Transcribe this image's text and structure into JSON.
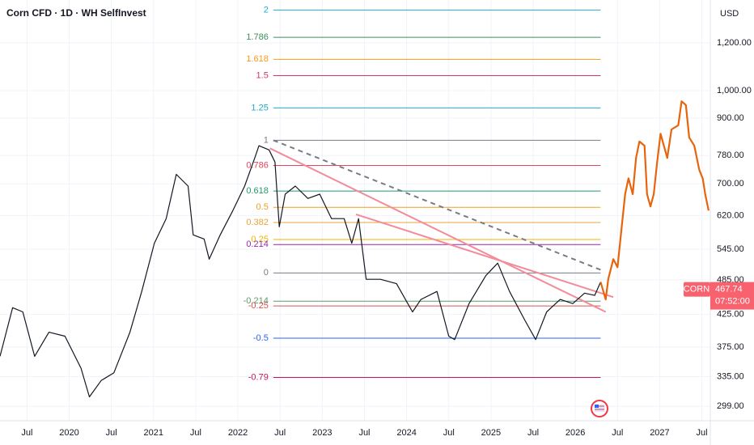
{
  "chart_data": {
    "type": "line",
    "title": "Corn CFD · 1D · WH SelfInvest",
    "currency": "USD",
    "symbol": "CORN",
    "last_price": 467.74,
    "countdown": "07:52:00",
    "log_scale": true,
    "grid": true,
    "xlim": [
      2019.18,
      2027.6
    ],
    "ylim": [
      283,
      1414
    ],
    "xticks": [
      {
        "value": 2019.5,
        "label": "Jul"
      },
      {
        "value": 2020,
        "label": "2020"
      },
      {
        "value": 2020.5,
        "label": "Jul"
      },
      {
        "value": 2021,
        "label": "2021"
      },
      {
        "value": 2021.5,
        "label": "Jul"
      },
      {
        "value": 2022,
        "label": "2022"
      },
      {
        "value": 2022.5,
        "label": "Jul"
      },
      {
        "value": 2023,
        "label": "2023"
      },
      {
        "value": 2023.5,
        "label": "Jul"
      },
      {
        "value": 2024,
        "label": "2024"
      },
      {
        "value": 2024.5,
        "label": "Jul"
      },
      {
        "value": 2025,
        "label": "2025"
      },
      {
        "value": 2025.5,
        "label": "Jul"
      },
      {
        "value": 2026,
        "label": "2026"
      },
      {
        "value": 2026.5,
        "label": "Jul"
      },
      {
        "value": 2027,
        "label": "2027"
      },
      {
        "value": 2027.5,
        "label": "Jul"
      }
    ],
    "yticks": [
      {
        "value": 1200,
        "label": "1,200.00"
      },
      {
        "value": 1000,
        "label": "1,000.00"
      },
      {
        "value": 900,
        "label": "900.00"
      },
      {
        "value": 780,
        "label": "780.00"
      },
      {
        "value": 700,
        "label": "700.00"
      },
      {
        "value": 620,
        "label": "620.00"
      },
      {
        "value": 545,
        "label": "545.00"
      },
      {
        "value": 485,
        "label": "485.00"
      },
      {
        "value": 425,
        "label": "425.00"
      },
      {
        "value": 375,
        "label": "375.00"
      },
      {
        "value": 335,
        "label": "335.00"
      },
      {
        "value": 299,
        "label": "299.00"
      }
    ],
    "series": [
      {
        "color": "#131722",
        "x": [
          2019.18,
          2019.33,
          2019.45,
          2019.59,
          2019.76,
          2019.95,
          2020.14,
          2020.24,
          2020.38,
          2020.53,
          2020.72,
          2020.86,
          2021.01,
          2021.15,
          2021.27,
          2021.41,
          2021.47,
          2021.6,
          2021.66,
          2021.79,
          2021.94,
          2022.08,
          2022.2,
          2022.25,
          2022.37,
          2022.44,
          2022.49,
          2022.56,
          2022.68,
          2022.83,
          2022.97,
          2023.11,
          2023.26,
          2023.35,
          2023.43,
          2023.52,
          2023.69,
          2023.88,
          2024.07,
          2024.17,
          2024.36,
          2024.5,
          2024.57,
          2024.74,
          2024.94,
          2025.08,
          2025.22,
          2025.4,
          2025.53,
          2025.66,
          2025.82,
          2025.97,
          2026.11,
          2026.23,
          2026.3
        ],
        "values": [
          362,
          436,
          429,
          362,
          397,
          391,
          346,
          310,
          330,
          340,
          397,
          464,
          558,
          613,
          726,
          694,
          576,
          567,
          525,
          576,
          632,
          694,
          773,
          810,
          797,
          761,
          594,
          673,
          694,
          662,
          673,
          613,
          613,
          558,
          613,
          486,
          486,
          478,
          429,
          450,
          464,
          391,
          386,
          443,
          493,
          517,
          464,
          416,
          386,
          429,
          450,
          443,
          461,
          457,
          481
        ]
      },
      {
        "color": "#e8640c",
        "x": [
          2026.3,
          2026.36,
          2026.39,
          2026.45,
          2026.5,
          2026.55,
          2026.59,
          2026.63,
          2026.68,
          2026.72,
          2026.76,
          2026.82,
          2026.85,
          2026.89,
          2026.93,
          2026.97,
          2027.01,
          2027.05,
          2027.09,
          2027.14,
          2027.22,
          2027.26,
          2027.31,
          2027.35,
          2027.41,
          2027.47,
          2027.51,
          2027.54,
          2027.58
        ],
        "values": [
          481,
          450,
          486,
          525,
          509,
          594,
          673,
          715,
          673,
          773,
          823,
          810,
          673,
          642,
          673,
          761,
          848,
          810,
          773,
          862,
          876,
          960,
          946,
          836,
          810,
          738,
          715,
          673,
          632
        ]
      }
    ],
    "trendlines": [
      {
        "color": "#f28b9a",
        "dashed": false,
        "x": [
          2022.38,
          2026.36
        ],
        "y": [
          802,
          429
        ]
      },
      {
        "color": "#f28b9a",
        "dashed": false,
        "x": [
          2023.4,
          2026.45
        ],
        "y": [
          623,
          454
        ]
      },
      {
        "color": "#787b86",
        "dashed": true,
        "x": [
          2022.42,
          2026.3
        ],
        "y": [
          827,
          504
        ]
      }
    ],
    "fib_x": [
      2022.42,
      2026.3
    ],
    "fib_levels": [
      {
        "level": 2,
        "price": 1361,
        "color": "#22a8d6"
      },
      {
        "level": 1.786,
        "price": 1226,
        "color": "#3d8f5c"
      },
      {
        "level": 1.618,
        "price": 1127,
        "color": "#f59b1b"
      },
      {
        "level": 1.5,
        "price": 1059,
        "color": "#d6336c"
      },
      {
        "level": 1.25,
        "price": 936,
        "color": "#22a8c7"
      },
      {
        "level": 1,
        "price": 827,
        "color": "#787b86"
      },
      {
        "level": 0.786,
        "price": 751,
        "color": "#e0475f"
      },
      {
        "level": 0.618,
        "price": 681,
        "color": "#1f9c6b"
      },
      {
        "level": 0.5,
        "price": 640,
        "color": "#f0a020"
      },
      {
        "level": 0.382,
        "price": 604,
        "color": "#e8a33c"
      },
      {
        "level": 0.25,
        "price": 566,
        "color": "#f4b400"
      },
      {
        "level": 0.214,
        "price": 555,
        "color": "#9c27b0"
      },
      {
        "level": 0,
        "price": 498,
        "color": "#787b86"
      },
      {
        "level": -0.214,
        "price": 447,
        "color": "#5b9a6b"
      },
      {
        "level": -0.25,
        "price": 439,
        "color": "#d9534f"
      },
      {
        "level": -0.5,
        "price": 388,
        "color": "#2962ff"
      },
      {
        "level": -0.79,
        "price": 334,
        "color": "#c2185b"
      }
    ]
  }
}
